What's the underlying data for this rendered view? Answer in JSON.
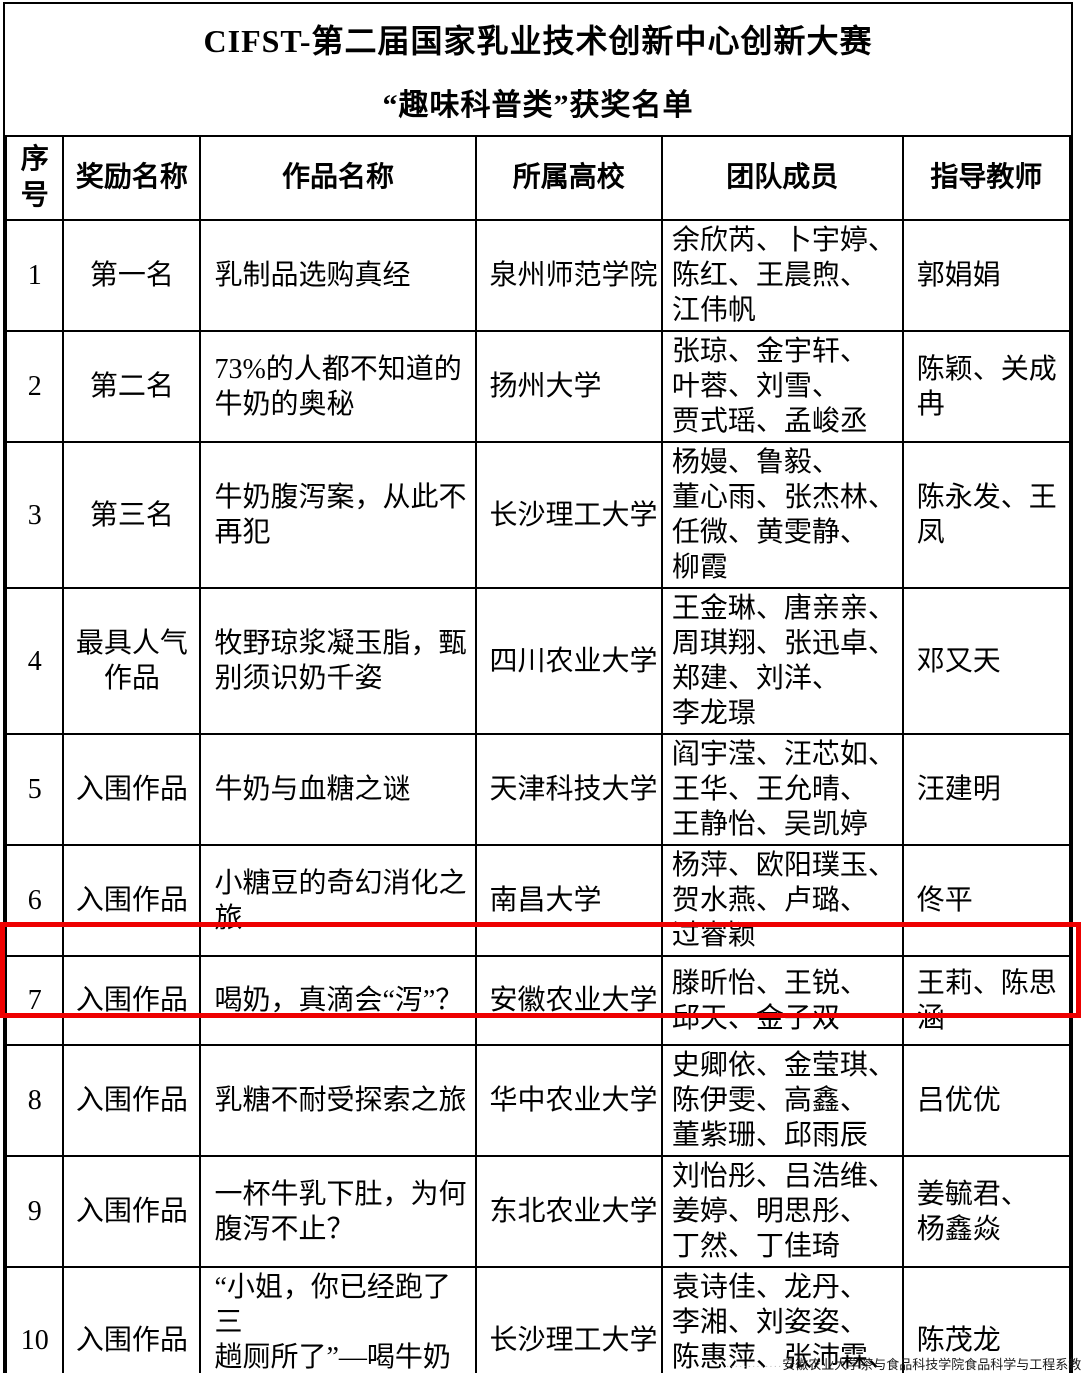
{
  "page": {
    "title": "CIFST-第二届国家乳业技术创新中心创新大赛",
    "subtitle": "“趣味科普类”获奖名单",
    "watermark_dots": "·············",
    "watermark": "安徽农业大学茶与食品科技学院食品科学与工程系教工党支部",
    "highlight_color": "#ee0000",
    "highlighted_row_number": "7"
  },
  "table": {
    "headers": {
      "no": "序\n号",
      "award": "奖励名称",
      "work": "作品名称",
      "school": "所属高校",
      "members": "团队成员",
      "teacher": "指导教师"
    },
    "rows": [
      {
        "no": "1",
        "award": "第一名",
        "work": "乳制品选购真经",
        "school": "泉州师范学院",
        "members": "余欣芮、卜宇婷、\n陈红、王晨煦、\n江伟帆",
        "teacher": "郭娟娟"
      },
      {
        "no": "2",
        "award": "第二名",
        "work": "73%的人都不知道的\n牛奶的奥秘",
        "school": "扬州大学",
        "members": "张琼、金宇轩、\n叶蓉、刘雪、\n贾式瑶、孟峻丞",
        "teacher": "陈颖、关成冉"
      },
      {
        "no": "3",
        "award": "第三名",
        "work": "牛奶腹泻案，从此不\n再犯",
        "school": "长沙理工大学",
        "members": "杨嫚、鲁毅、\n董心雨、张杰林、\n任微、黄雯静、\n柳霞",
        "teacher": "陈永发、王凤"
      },
      {
        "no": "4",
        "award": "最具人气\n作品",
        "work": "牧野琼浆凝玉脂，甄\n别须识奶千姿",
        "school": "四川农业大学",
        "members": "王金琳、唐亲亲、\n周琪翔、张迅卓、\n郑建、刘洋、\n李龙璟",
        "teacher": "邓又天"
      },
      {
        "no": "5",
        "award": "入围作品",
        "work": "牛奶与血糖之谜",
        "school": "天津科技大学",
        "members": "阎宇滢、汪芯如、\n王华、王允晴、\n王静怡、吴凯婷",
        "teacher": "汪建明"
      },
      {
        "no": "6",
        "award": "入围作品",
        "work": "小糖豆的奇幻消化之\n旅",
        "school": "南昌大学",
        "members": "杨萍、欧阳璞玉、\n贺水燕、卢璐、\n过睿颖",
        "teacher": "佟平"
      },
      {
        "no": "7",
        "award": "入围作品",
        "work": "喝奶，真滴会“泻”？",
        "school": "安徽农业大学",
        "members": "滕昕怡、王锐、\n邱天、金子双",
        "teacher": "王莉、陈思涵"
      },
      {
        "no": "8",
        "award": "入围作品",
        "work": "乳糖不耐受探索之旅",
        "school": "华中农业大学",
        "members": "史卿依、金莹琪、\n陈伊雯、高鑫、\n董紫珊、邱雨辰",
        "teacher": "吕优优"
      },
      {
        "no": "9",
        "award": "入围作品",
        "work": "一杯牛乳下肚，为何\n腹泻不止？",
        "school": "东北农业大学",
        "members": "刘怡彤、吕浩维、\n姜婷、明思彤、\n丁然、丁佳琦",
        "teacher": "姜毓君、\n杨鑫焱"
      },
      {
        "no": "10",
        "award": "入围作品",
        "work": "“小姐，你已经跑了三\n趟厕所了”—喝牛奶\n为什么会腹泻？",
        "school": "长沙理工大学",
        "members": "袁诗佳、龙丹、\n李湘、刘姿姿、\n陈惠萍、张沛霖、\n卢琼婷",
        "teacher": "陈茂龙"
      }
    ]
  }
}
